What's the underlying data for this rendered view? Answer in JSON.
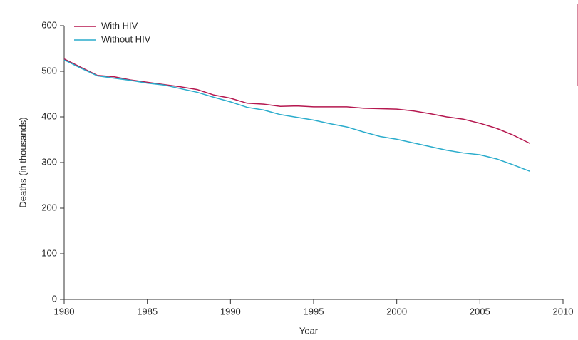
{
  "chart_data": {
    "type": "line",
    "x": [
      1980,
      1981,
      1982,
      1983,
      1984,
      1985,
      1986,
      1987,
      1988,
      1989,
      1990,
      1991,
      1992,
      1993,
      1994,
      1995,
      1996,
      1997,
      1998,
      1999,
      2000,
      2001,
      2002,
      2003,
      2004,
      2005,
      2006,
      2007,
      2008
    ],
    "series": [
      {
        "name": "With HIV",
        "color": "#b5174f",
        "values": [
          527,
          509,
          491,
          488,
          481,
          476,
          471,
          466,
          460,
          448,
          441,
          430,
          428,
          423,
          424,
          422,
          422,
          422,
          419,
          418,
          417,
          413,
          407,
          400,
          395,
          386,
          375,
          360,
          342
        ]
      },
      {
        "name": "Without HIV",
        "color": "#2aaccc",
        "values": [
          525,
          507,
          490,
          485,
          480,
          474,
          470,
          462,
          454,
          443,
          433,
          421,
          415,
          405,
          399,
          393,
          385,
          378,
          367,
          357,
          351,
          343,
          335,
          327,
          321,
          317,
          308,
          295,
          281
        ]
      }
    ],
    "xlabel": "Year",
    "ylabel": "Deaths (in thousands)",
    "xlim": [
      1980,
      2010
    ],
    "xticks": [
      1980,
      1985,
      1990,
      1995,
      2000,
      2005,
      2010
    ],
    "ylim": [
      0,
      600
    ],
    "yticks": [
      0,
      100,
      200,
      300,
      400,
      500,
      600
    ],
    "legend": "upper left",
    "grid": false
  }
}
